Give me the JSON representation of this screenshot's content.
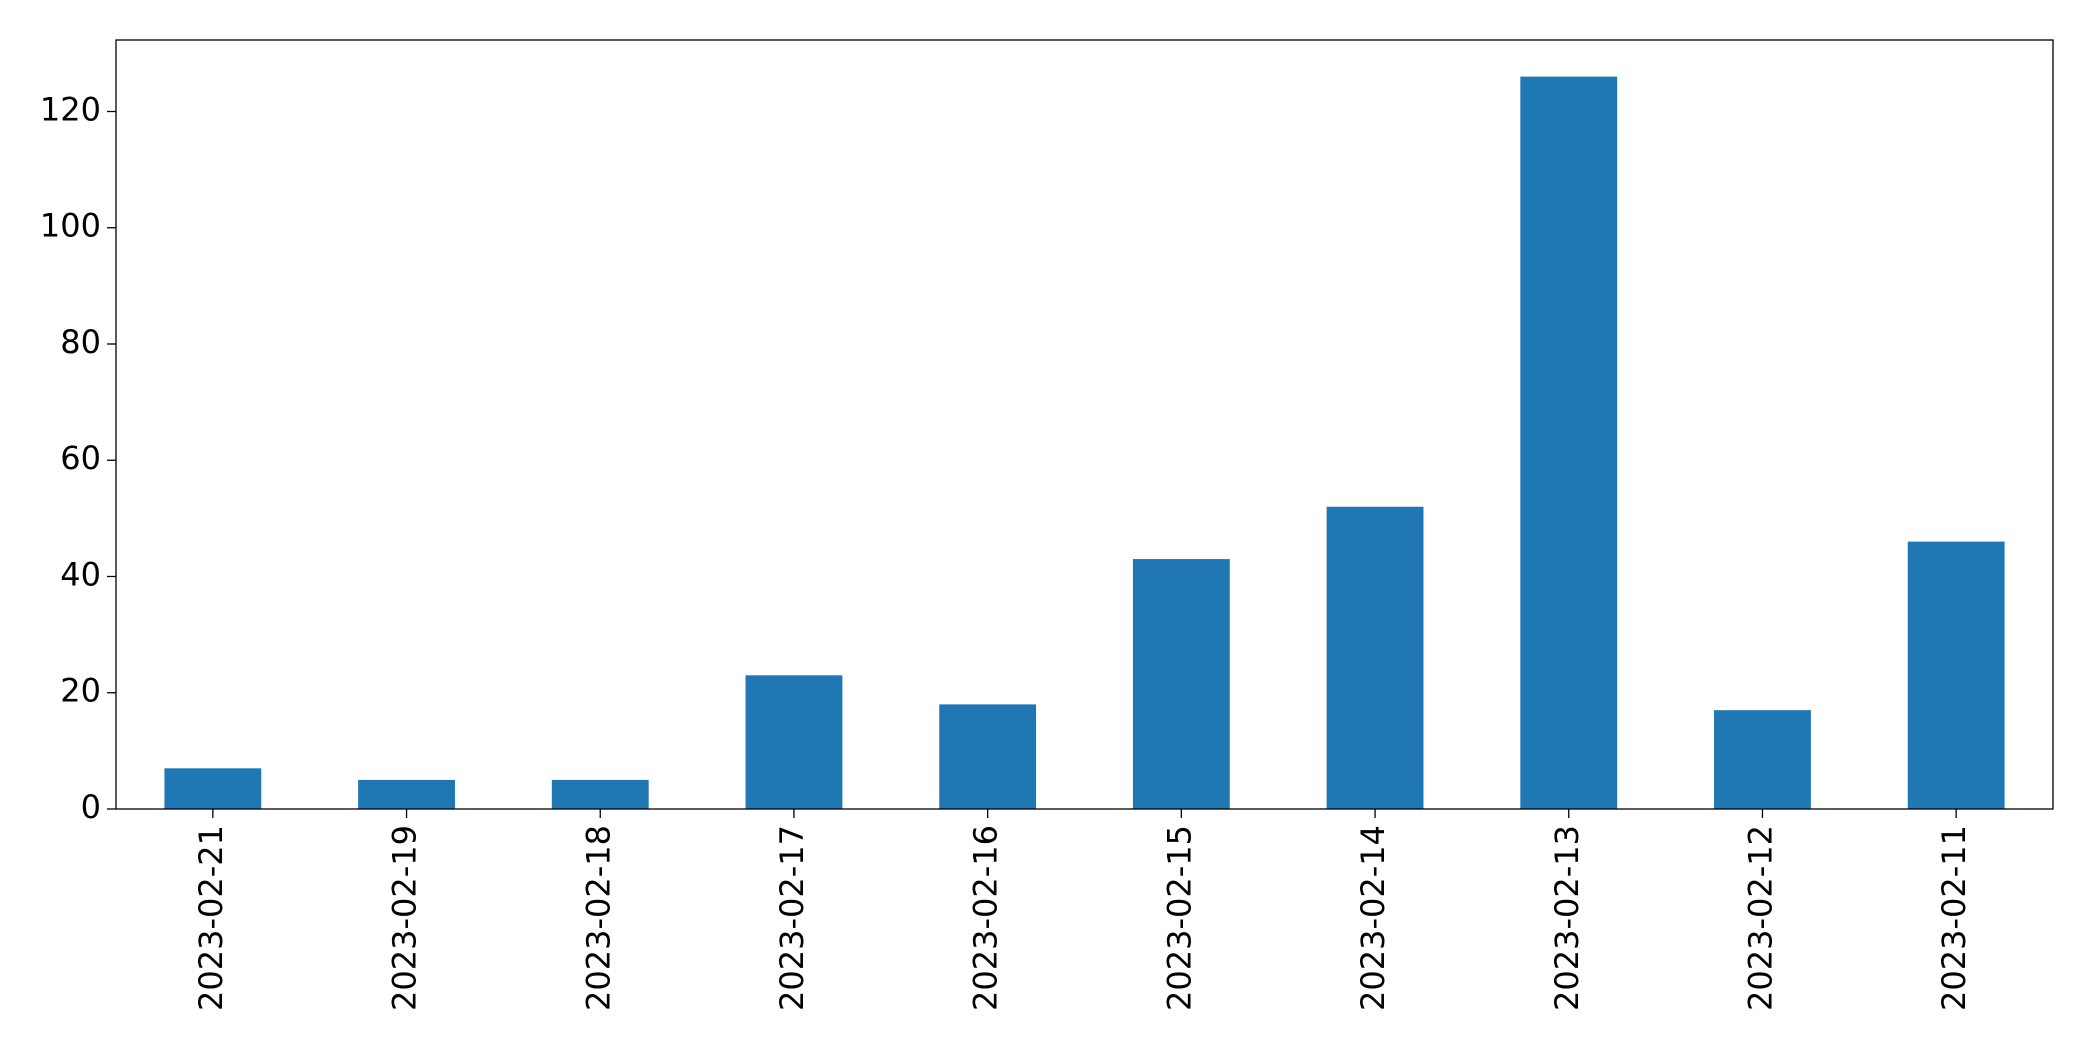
{
  "chart_data": {
    "type": "bar",
    "categories": [
      "2023-02-21",
      "2023-02-19",
      "2023-02-18",
      "2023-02-17",
      "2023-02-16",
      "2023-02-15",
      "2023-02-14",
      "2023-02-13",
      "2023-02-12",
      "2023-02-11"
    ],
    "values": [
      7,
      5,
      5,
      23,
      18,
      43,
      52,
      126,
      17,
      46
    ],
    "color": "#1f77b4",
    "ylim": [
      0,
      132.3
    ],
    "yticks": [
      0,
      20,
      40,
      60,
      80,
      100,
      120
    ],
    "grid": false
  }
}
